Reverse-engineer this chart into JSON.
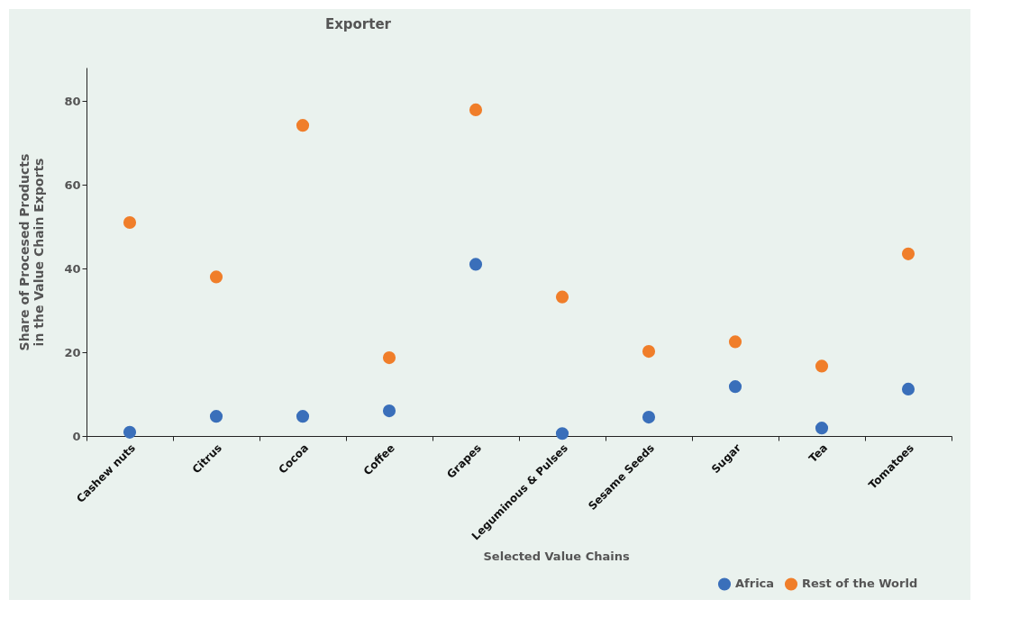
{
  "chart_data": {
    "type": "scatter",
    "title": "Exporter",
    "xlabel": "Selected Value Chains",
    "ylabel": "Share of Procesed Products\nin the Value Chain Exports",
    "categories": [
      "Cashew nuts",
      "Citrus",
      "Cocoa",
      "Coffee",
      "Grapes",
      "Leguminous & Pulses",
      "Sesame Seeds",
      "Sugar",
      "Tea",
      "Tomatoes"
    ],
    "series": [
      {
        "name": "Africa",
        "color": "#3a6fba",
        "values": [
          0.9,
          4.7,
          4.7,
          6.0,
          41.0,
          0.6,
          4.5,
          11.8,
          1.9,
          11.2
        ]
      },
      {
        "name": "Rest of the World",
        "color": "#f07e2a",
        "values": [
          51.0,
          38.0,
          74.2,
          18.7,
          77.9,
          33.2,
          20.2,
          22.5,
          16.7,
          43.5
        ]
      }
    ],
    "ylim": [
      0,
      88
    ],
    "yticks": [
      0,
      20,
      40,
      60,
      80
    ],
    "grid": false,
    "legend": "bottom right",
    "marker": "circle"
  }
}
